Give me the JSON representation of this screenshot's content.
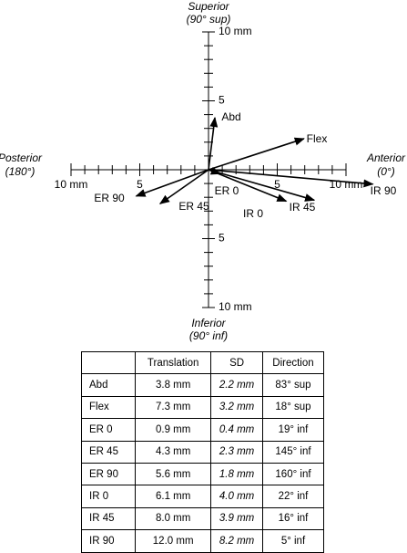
{
  "chart_data": {
    "type": "vector",
    "axis_labels": {
      "top": "Superior",
      "top_sub": "(90° sup)",
      "bottom": "Inferior",
      "bottom_sub": "(90° inf)",
      "left": "Posterior",
      "left_sub": "(180°)",
      "right": "Anterior",
      "right_sub": "(0°)"
    },
    "xlim": [
      -10,
      10
    ],
    "ylim": [
      -10,
      10
    ],
    "xticks": [
      {
        "value": -10,
        "label": "10 mm"
      },
      {
        "value": -5,
        "label": "5"
      },
      {
        "value": 5,
        "label": "5"
      },
      {
        "value": 10,
        "label": "10 mm"
      }
    ],
    "yticks": [
      {
        "value": -10,
        "label": "10 mm"
      },
      {
        "value": -5,
        "label": "5"
      },
      {
        "value": 5,
        "label": "5"
      },
      {
        "value": 10,
        "label": "10 mm"
      }
    ],
    "table_headers": [
      "Translation",
      "SD",
      "Direction"
    ],
    "categories": [
      "Abd",
      "Flex",
      "ER 0",
      "ER 45",
      "ER 90",
      "IR 0",
      "IR 45",
      "IR 90"
    ],
    "values": [
      3.8,
      7.3,
      0.9,
      4.3,
      5.6,
      6.1,
      8.0,
      12.0
    ],
    "value_labels": [
      "3.8 mm",
      "7.3 mm",
      "0.9 mm",
      "4.3 mm",
      "5.6 mm",
      "6.1 mm",
      "8.0 mm",
      "12.0 mm"
    ],
    "sd": [
      2.2,
      3.2,
      0.4,
      2.3,
      1.8,
      4.0,
      3.9,
      8.2
    ],
    "sd_labels": [
      "2.2 mm",
      "3.2 mm",
      "0.4 mm",
      "2.3 mm",
      "1.8 mm",
      "4.0 mm",
      "3.9 mm",
      "8.2 mm"
    ],
    "directions": [
      83,
      18,
      -19,
      -145,
      -160,
      -22,
      -16,
      -5
    ],
    "direction_labels": [
      "83° sup",
      "18° sup",
      "19° inf",
      "145° inf",
      "160° inf",
      "22° inf",
      "16° inf",
      "5° inf"
    ],
    "color": "#000000"
  }
}
